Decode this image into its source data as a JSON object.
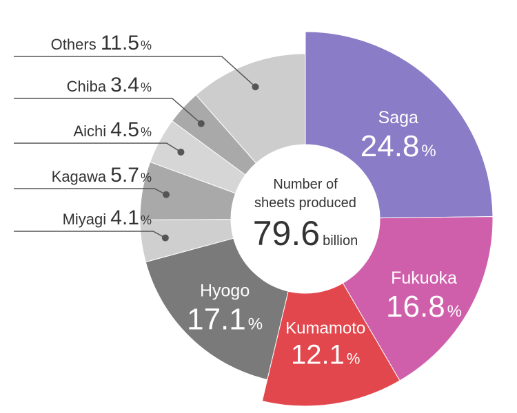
{
  "chart_data": {
    "type": "pie",
    "variant": "donut",
    "center": {
      "line1": "Number of",
      "line2": "sheets produced",
      "value": "79.6",
      "unit": "billion"
    },
    "unit_symbol": "%",
    "slices": [
      {
        "name": "Saga",
        "value": 24.8,
        "value_label": "24.8",
        "color": "#8a7cc6",
        "exploded": true,
        "label_style": "inside"
      },
      {
        "name": "Fukuoka",
        "value": 16.8,
        "value_label": "16.8",
        "color": "#cf5fab",
        "exploded": true,
        "label_style": "inside"
      },
      {
        "name": "Kumamoto",
        "value": 12.1,
        "value_label": "12.1",
        "color": "#e2474d",
        "exploded": true,
        "label_style": "inside"
      },
      {
        "name": "Hyogo",
        "value": 17.1,
        "value_label": "17.1",
        "color": "#7a7a7a",
        "exploded": false,
        "label_style": "inside"
      },
      {
        "name": "Miyagi",
        "value": 4.1,
        "value_label": "4.1",
        "color": "#cfcfcf",
        "exploded": false,
        "label_style": "leader"
      },
      {
        "name": "Kagawa",
        "value": 5.7,
        "value_label": "5.7",
        "color": "#a9a9a9",
        "exploded": false,
        "label_style": "leader"
      },
      {
        "name": "Aichi",
        "value": 4.5,
        "value_label": "4.5",
        "color": "#d6d6d6",
        "exploded": false,
        "label_style": "leader"
      },
      {
        "name": "Chiba",
        "value": 3.4,
        "value_label": "3.4",
        "color": "#a9a9a9",
        "exploded": false,
        "label_style": "leader"
      },
      {
        "name": "Others",
        "value": 11.5,
        "value_label": "11.5",
        "color": "#cdcdcd",
        "exploded": false,
        "label_style": "leader"
      }
    ]
  }
}
